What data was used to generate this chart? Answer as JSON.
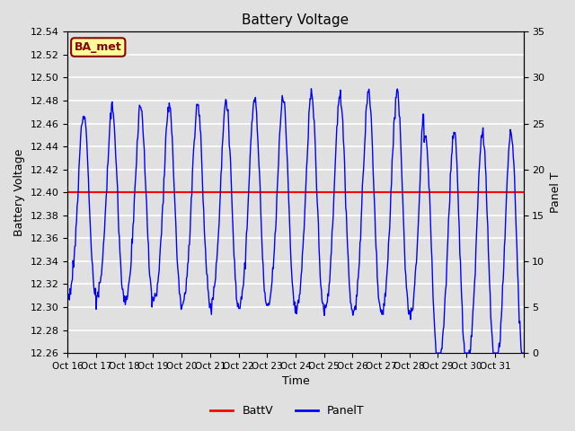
{
  "title": "Battery Voltage",
  "xlabel": "Time",
  "ylabel_left": "Battery Voltage",
  "ylabel_right": "Panel T",
  "battv_value": 12.4,
  "ylim_left": [
    12.26,
    12.54
  ],
  "ylim_right": [
    0,
    35
  ],
  "yticks_left": [
    12.26,
    12.28,
    12.3,
    12.32,
    12.34,
    12.36,
    12.38,
    12.4,
    12.42,
    12.44,
    12.46,
    12.48,
    12.5,
    12.52,
    12.54
  ],
  "yticks_right": [
    0,
    5,
    10,
    15,
    20,
    25,
    30,
    35
  ],
  "xtick_positions": [
    0,
    1,
    2,
    3,
    4,
    5,
    6,
    7,
    8,
    9,
    10,
    11,
    12,
    13,
    14,
    15,
    16
  ],
  "xtick_labels": [
    "Oct 16",
    "Oct 17",
    "Oct 18",
    "Oct 19",
    "Oct 20",
    "Oct 21",
    "Oct 22",
    "Oct 23",
    "Oct 24",
    "Oct 25",
    "Oct 26",
    "Oct 27",
    "Oct 28",
    "Oct 29",
    "Oct 30",
    "Oct 31",
    ""
  ],
  "n_days": 16,
  "background_color": "#e0e0e0",
  "plot_bg_color": "#e0e0e0",
  "grid_color": "#ffffff",
  "batt_line_color": "#ff0000",
  "panel_line_color": "#0000ff",
  "annotation_text": "BA_met",
  "annotation_bg": "#ffff99",
  "annotation_border": "#8b0000",
  "annotation_text_color": "#8b0000",
  "legend_batt_label": "BattV",
  "legend_panel_label": "PanelT"
}
